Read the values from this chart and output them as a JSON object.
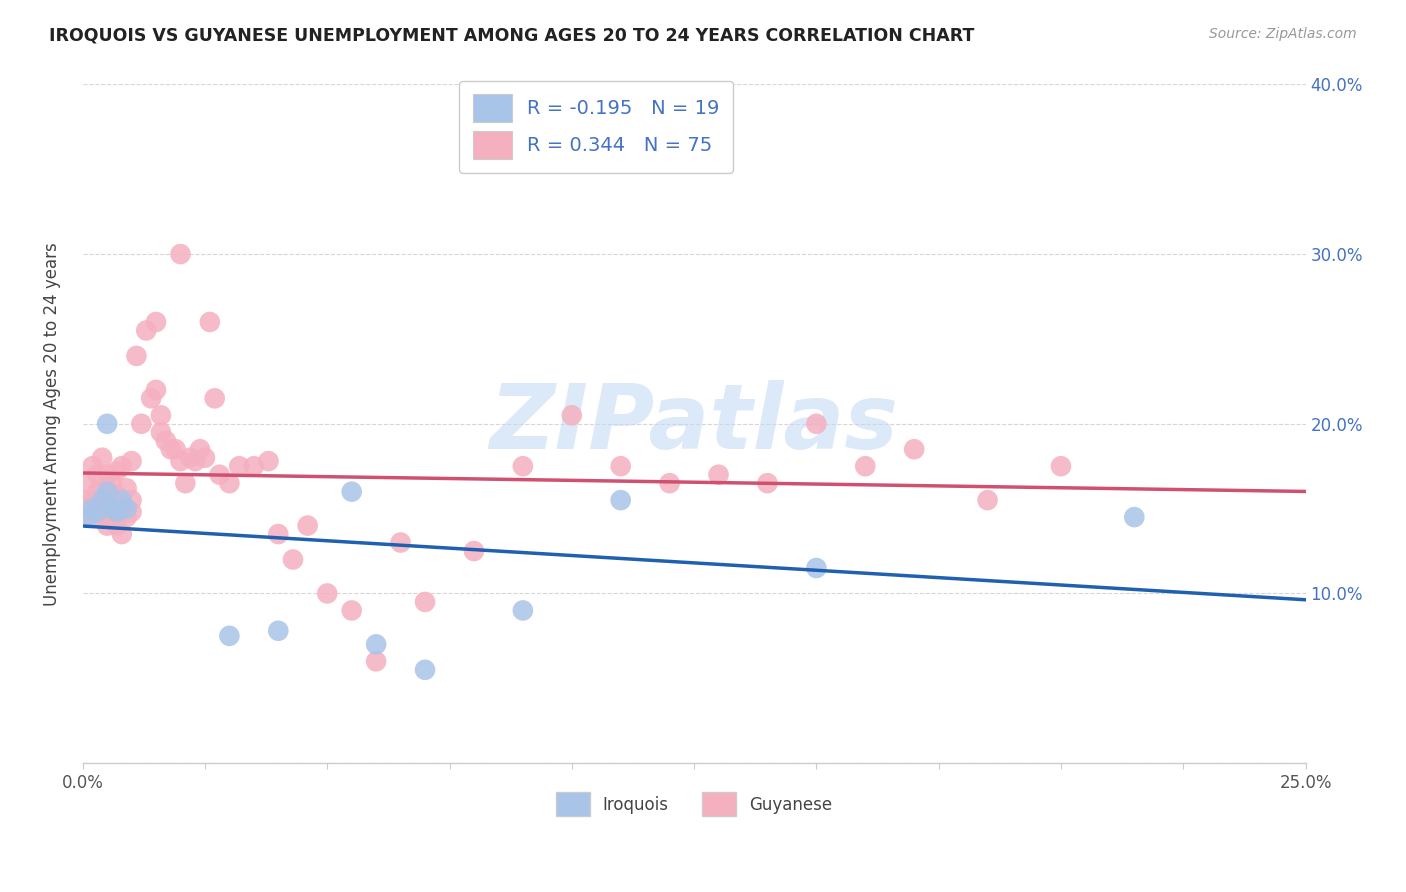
{
  "title": "IROQUOIS VS GUYANESE UNEMPLOYMENT AMONG AGES 20 TO 24 YEARS CORRELATION CHART",
  "source": "Source: ZipAtlas.com",
  "ylabel": "Unemployment Among Ages 20 to 24 years",
  "xlim": [
    0,
    0.25
  ],
  "ylim": [
    0,
    0.4
  ],
  "xticks": [
    0.0,
    0.025,
    0.05,
    0.075,
    0.1,
    0.125,
    0.15,
    0.175,
    0.2,
    0.225,
    0.25
  ],
  "xtick_labels_show": [
    "0.0%",
    "",
    "",
    "",
    "",
    "",
    "",
    "",
    "",
    "",
    "25.0%"
  ],
  "yticks": [
    0.0,
    0.1,
    0.2,
    0.3,
    0.4
  ],
  "ytick_labels": [
    "",
    "10.0%",
    "20.0%",
    "30.0%",
    "40.0%"
  ],
  "legend_labels": [
    "Iroquois",
    "Guyanese"
  ],
  "iroquois_R": -0.195,
  "iroquois_N": 19,
  "guyanese_R": 0.344,
  "guyanese_N": 75,
  "iroquois_scatter_color": "#a8c4e8",
  "guyanese_scatter_color": "#f5b0c0",
  "iroquois_line_color": "#2060b0",
  "guyanese_line_color": "#d05070",
  "watermark": "ZIPatlas",
  "watermark_color": "#c0d8f5",
  "iroquois_x": [
    0.001,
    0.002,
    0.003,
    0.004,
    0.005,
    0.005,
    0.006,
    0.007,
    0.008,
    0.009,
    0.03,
    0.04,
    0.055,
    0.06,
    0.07,
    0.09,
    0.11,
    0.15,
    0.215
  ],
  "iroquois_y": [
    0.145,
    0.15,
    0.148,
    0.155,
    0.16,
    0.2,
    0.15,
    0.148,
    0.155,
    0.15,
    0.075,
    0.078,
    0.16,
    0.07,
    0.055,
    0.09,
    0.155,
    0.115,
    0.145
  ],
  "guyanese_x": [
    0.001,
    0.001,
    0.002,
    0.002,
    0.002,
    0.003,
    0.003,
    0.003,
    0.003,
    0.004,
    0.004,
    0.004,
    0.005,
    0.005,
    0.005,
    0.005,
    0.006,
    0.006,
    0.006,
    0.007,
    0.007,
    0.007,
    0.008,
    0.008,
    0.008,
    0.009,
    0.009,
    0.01,
    0.01,
    0.01,
    0.011,
    0.012,
    0.013,
    0.014,
    0.015,
    0.015,
    0.016,
    0.016,
    0.017,
    0.018,
    0.019,
    0.02,
    0.02,
    0.021,
    0.022,
    0.023,
    0.024,
    0.025,
    0.026,
    0.027,
    0.028,
    0.03,
    0.032,
    0.035,
    0.038,
    0.04,
    0.043,
    0.046,
    0.05,
    0.055,
    0.06,
    0.065,
    0.07,
    0.08,
    0.09,
    0.1,
    0.11,
    0.12,
    0.13,
    0.14,
    0.15,
    0.16,
    0.17,
    0.185,
    0.2
  ],
  "guyanese_y": [
    0.155,
    0.165,
    0.145,
    0.155,
    0.175,
    0.148,
    0.155,
    0.16,
    0.17,
    0.145,
    0.155,
    0.18,
    0.14,
    0.148,
    0.162,
    0.17,
    0.145,
    0.155,
    0.165,
    0.14,
    0.158,
    0.172,
    0.135,
    0.15,
    0.175,
    0.145,
    0.162,
    0.148,
    0.155,
    0.178,
    0.24,
    0.2,
    0.255,
    0.215,
    0.22,
    0.26,
    0.195,
    0.205,
    0.19,
    0.185,
    0.185,
    0.178,
    0.3,
    0.165,
    0.18,
    0.178,
    0.185,
    0.18,
    0.26,
    0.215,
    0.17,
    0.165,
    0.175,
    0.175,
    0.178,
    0.135,
    0.12,
    0.14,
    0.1,
    0.09,
    0.06,
    0.13,
    0.095,
    0.125,
    0.175,
    0.205,
    0.175,
    0.165,
    0.17,
    0.165,
    0.2,
    0.175,
    0.185,
    0.155,
    0.175
  ]
}
